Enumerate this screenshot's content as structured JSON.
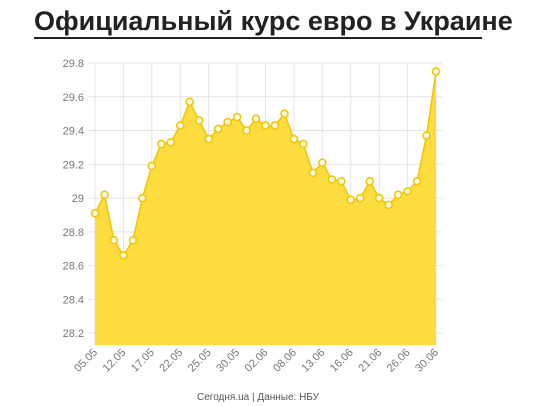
{
  "chart_data": {
    "type": "area",
    "title": "Официальный курс евро в Украине",
    "source": "Сегодня.ua | Данные: НБУ",
    "categories": [
      "05.05",
      null,
      null,
      "12.05",
      null,
      null,
      "17.05",
      null,
      null,
      "22.05",
      null,
      null,
      "25.05",
      null,
      null,
      "30.05",
      null,
      null,
      "02.06",
      null,
      null,
      "08.06",
      null,
      null,
      "13.06",
      null,
      null,
      "16.06",
      null,
      null,
      "21.06",
      null,
      null,
      "26.06",
      null,
      null,
      "30.06"
    ],
    "values": [
      28.91,
      29.02,
      28.75,
      28.66,
      28.75,
      29.0,
      29.19,
      29.32,
      29.33,
      29.43,
      29.57,
      29.46,
      29.35,
      29.41,
      29.45,
      29.48,
      29.4,
      29.47,
      29.43,
      29.43,
      29.5,
      29.35,
      29.32,
      29.15,
      29.21,
      29.11,
      29.1,
      28.99,
      29.0,
      29.1,
      29.0,
      28.96,
      29.02,
      29.04,
      29.1,
      29.37,
      29.75
    ],
    "color": "#fddc3f",
    "ylim": [
      28.13,
      29.8
    ],
    "yticks": [
      28.2,
      28.4,
      28.6,
      28.8,
      29,
      29.2,
      29.4,
      29.6,
      29.8
    ],
    "grid": true
  }
}
